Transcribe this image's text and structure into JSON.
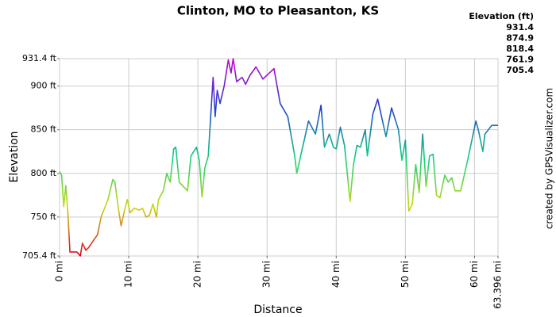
{
  "chart_data": {
    "type": "line",
    "title": "Clinton, MO to Pleasanton, KS",
    "x_label": "Distance",
    "y_label": "Elevation",
    "credit": "created by GPSVisualizer.com",
    "xlim": [
      0,
      63.396
    ],
    "ylim": [
      705.4,
      931.4
    ],
    "xticks": [
      {
        "value": 0,
        "label": "0 mi"
      },
      {
        "value": 10,
        "label": "10 mi"
      },
      {
        "value": 20,
        "label": "20 mi"
      },
      {
        "value": 30,
        "label": "30 mi"
      },
      {
        "value": 40,
        "label": "40 mi"
      },
      {
        "value": 50,
        "label": "50 mi"
      },
      {
        "value": 60,
        "label": "60 mi"
      },
      {
        "value": 63.396,
        "label": "63.396 mi"
      }
    ],
    "yticks": [
      {
        "value": 705.4,
        "label": "705.4 ft"
      },
      {
        "value": 750,
        "label": "750 ft"
      },
      {
        "value": 800,
        "label": "800 ft"
      },
      {
        "value": 850,
        "label": "850 ft"
      },
      {
        "value": 900,
        "label": "900 ft"
      },
      {
        "value": 931.4,
        "label": "931.4 ft"
      }
    ],
    "grid": true,
    "legend": {
      "title": "Elevation (ft)",
      "values": [
        931.4,
        874.9,
        818.4,
        761.9,
        705.4
      ],
      "colors": [
        "#cc00cc",
        "#2040d0",
        "#10d080",
        "#c8d810",
        "#e00020"
      ]
    },
    "x": [
      0,
      0.3,
      0.6,
      0.9,
      1.2,
      1.5,
      2.5,
      3.0,
      3.3,
      3.8,
      4.2,
      4.8,
      5.5,
      6.0,
      7.0,
      7.7,
      8.0,
      8.5,
      8.9,
      9.4,
      9.8,
      10.2,
      10.8,
      11.5,
      12.0,
      12.5,
      13.0,
      13.5,
      14.0,
      14.3,
      15.0,
      15.5,
      16.0,
      16.5,
      16.8,
      17.3,
      18.5,
      19.0,
      19.8,
      20.2,
      20.6,
      21.0,
      21.5,
      22.2,
      22.5,
      22.8,
      23.2,
      23.8,
      24.4,
      24.8,
      25.1,
      25.6,
      26.4,
      26.9,
      27.5,
      28.4,
      29.4,
      31.0,
      31.9,
      33.0,
      34.0,
      34.3,
      35.0,
      36.0,
      37.0,
      37.8,
      38.3,
      39.0,
      39.6,
      40.0,
      40.6,
      41.2,
      42.0,
      42.5,
      43.0,
      43.5,
      44.2,
      44.5,
      45.3,
      46.0,
      47.2,
      48.0,
      49.0,
      49.5,
      50.0,
      50.5,
      51.0,
      51.5,
      52.0,
      52.5,
      53.0,
      53.5,
      54.0,
      54.5,
      55.0,
      55.7,
      56.2,
      56.7,
      57.2,
      58.0,
      59.0,
      60.2,
      60.6,
      61.2,
      61.5,
      62.5,
      63.396
    ],
    "values": [
      802,
      798,
      762,
      786,
      755,
      710,
      710,
      705.4,
      720,
      712,
      715,
      722,
      730,
      750,
      770,
      793,
      790,
      760,
      740,
      758,
      770,
      755,
      760,
      758,
      760,
      750,
      752,
      765,
      750,
      770,
      780,
      800,
      790,
      828,
      830,
      790,
      780,
      820,
      830,
      815,
      773,
      806,
      820,
      910,
      865,
      895,
      880,
      900,
      930,
      915,
      931.4,
      905,
      910,
      902,
      912,
      922,
      908,
      920,
      880,
      865,
      820,
      800,
      825,
      860,
      845,
      878,
      830,
      845,
      830,
      828,
      853,
      832,
      768,
      810,
      832,
      830,
      850,
      820,
      868,
      885,
      842,
      875,
      850,
      815,
      838,
      757,
      765,
      810,
      778,
      845,
      785,
      820,
      822,
      775,
      772,
      798,
      790,
      795,
      780,
      780,
      815,
      860,
      848,
      825,
      845,
      855,
      855
    ]
  }
}
